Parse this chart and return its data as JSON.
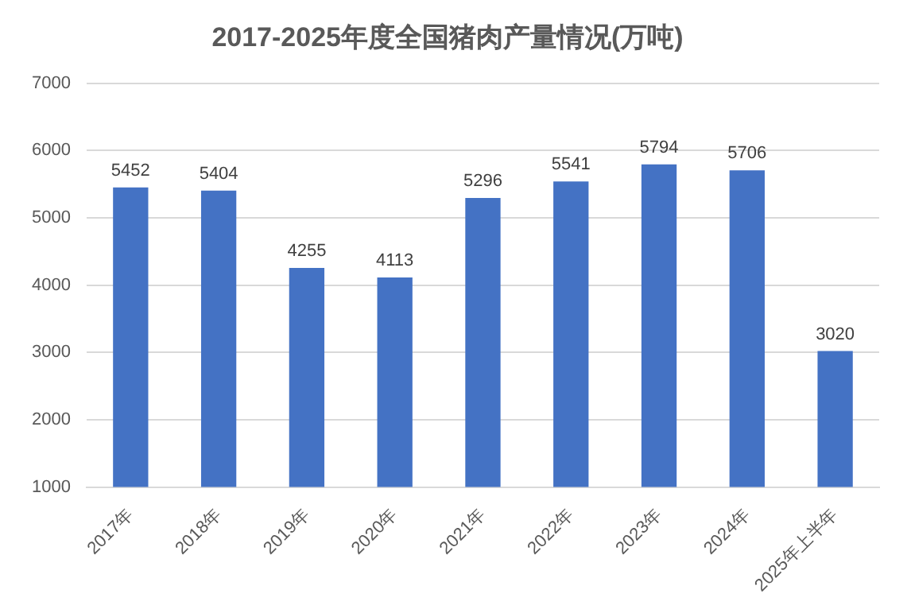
{
  "chart_data": {
    "type": "bar",
    "title": "2017-2025年度全国猪肉产量情况(万吨)",
    "categories": [
      "2017年",
      "2018年",
      "2019年",
      "2020年",
      "2021年",
      "2022年",
      "2023年",
      "2024年",
      "2025年上半年"
    ],
    "values": [
      5452,
      5404,
      4255,
      4113,
      5296,
      5541,
      5794,
      5706,
      3020
    ],
    "color": "#4472c4",
    "ylim": [
      1000,
      7000
    ],
    "yticks": [
      1000,
      2000,
      3000,
      4000,
      5000,
      6000,
      7000
    ],
    "grid": "y",
    "data_labels": true
  }
}
